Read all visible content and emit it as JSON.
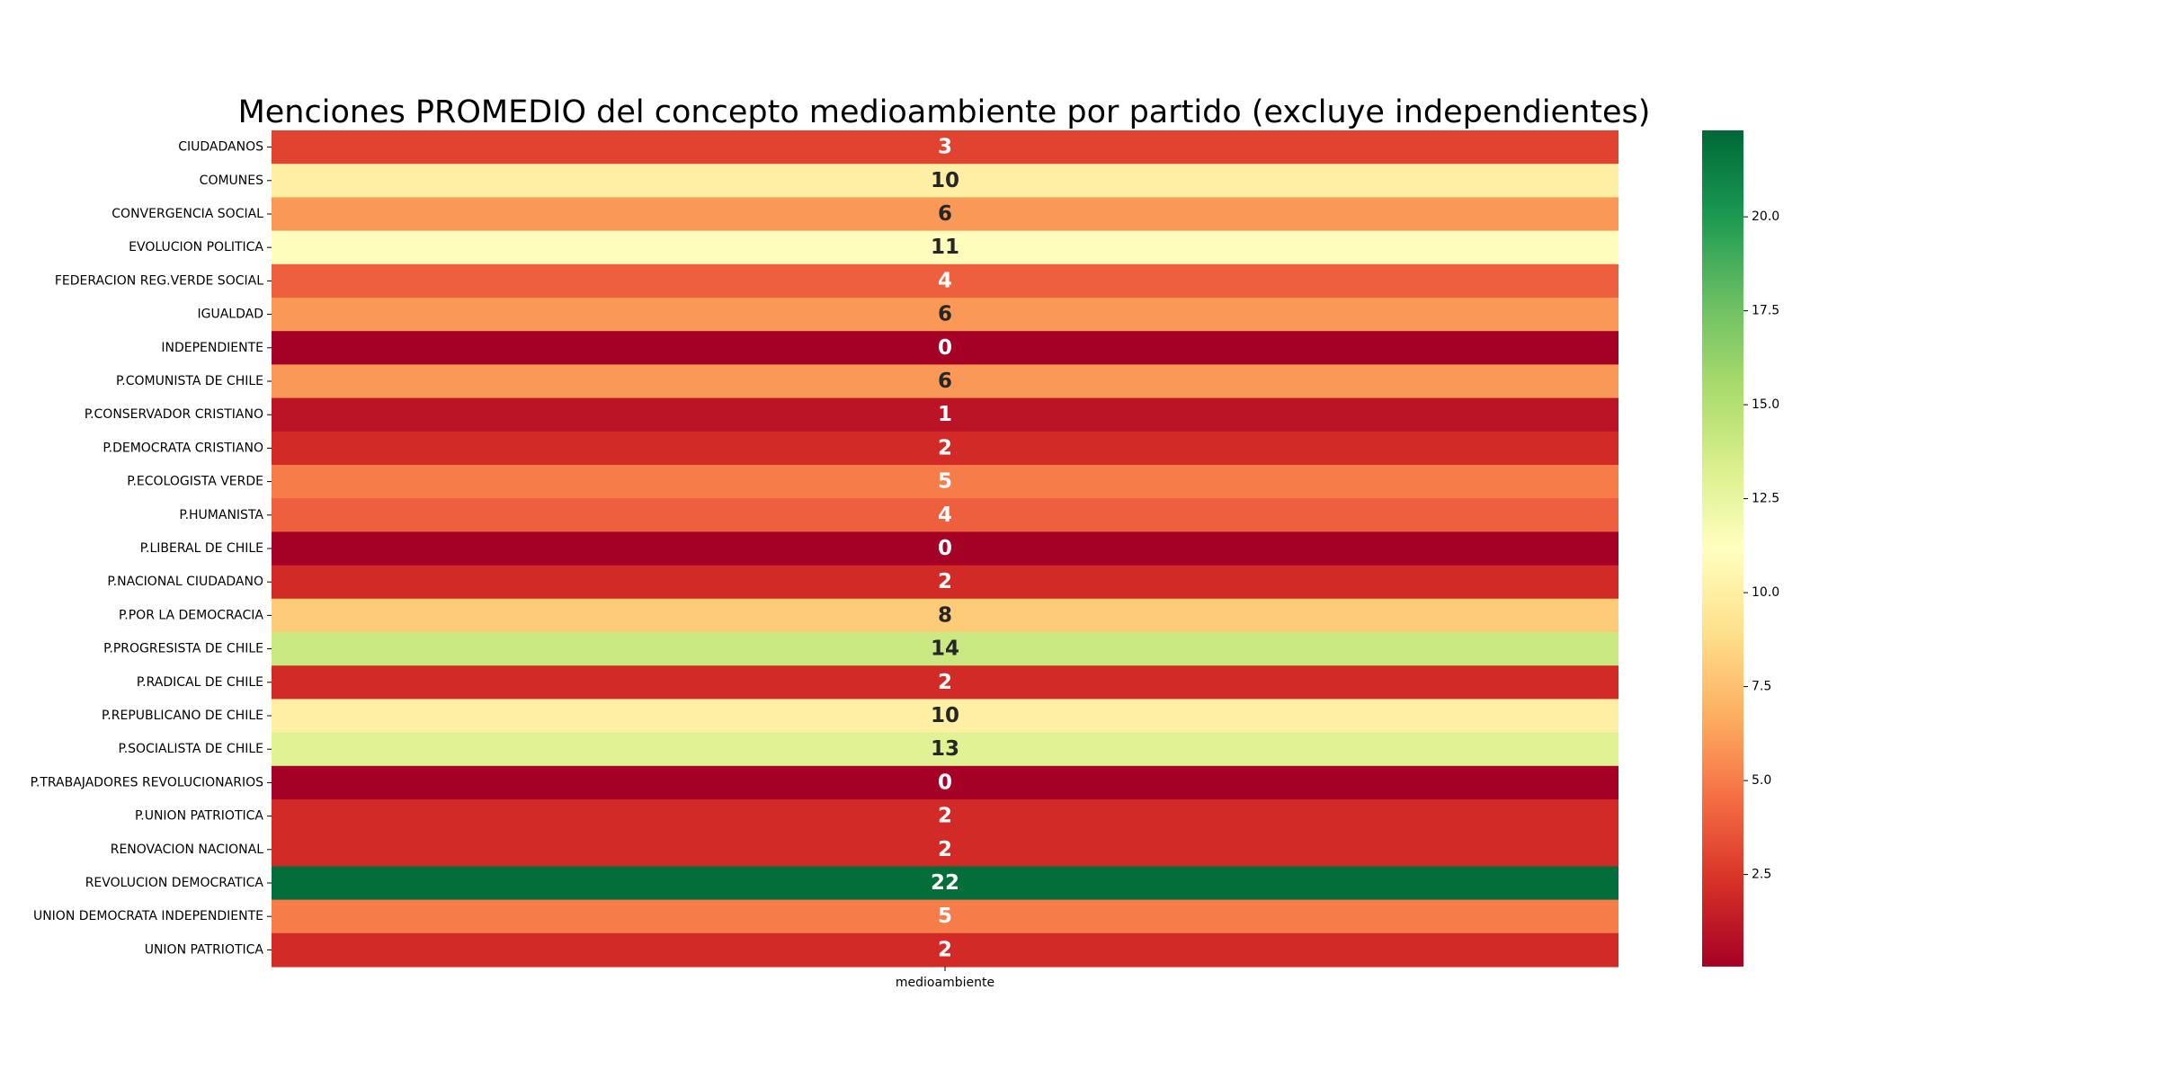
{
  "chart_data": {
    "type": "heatmap",
    "title": "Menciones PROMEDIO del concepto medioambiente por partido (excluye independientes)",
    "columns": [
      "medioambiente"
    ],
    "rows": [
      {
        "label": "CIUDADANOS",
        "value": 3
      },
      {
        "label": "COMUNES",
        "value": 10
      },
      {
        "label": "CONVERGENCIA SOCIAL",
        "value": 6
      },
      {
        "label": "EVOLUCION POLITICA",
        "value": 11
      },
      {
        "label": "FEDERACION REG.VERDE SOCIAL",
        "value": 4
      },
      {
        "label": "IGUALDAD",
        "value": 6
      },
      {
        "label": "INDEPENDIENTE",
        "value": 0
      },
      {
        "label": "P.COMUNISTA DE CHILE",
        "value": 6
      },
      {
        "label": "P.CONSERVADOR CRISTIANO",
        "value": 1
      },
      {
        "label": "P.DEMOCRATA CRISTIANO",
        "value": 2
      },
      {
        "label": "P.ECOLOGISTA VERDE",
        "value": 5
      },
      {
        "label": "P.HUMANISTA",
        "value": 4
      },
      {
        "label": "P.LIBERAL DE CHILE",
        "value": 0
      },
      {
        "label": "P.NACIONAL CIUDADANO",
        "value": 2
      },
      {
        "label": "P.POR LA DEMOCRACIA",
        "value": 8
      },
      {
        "label": "P.PROGRESISTA DE CHILE",
        "value": 14
      },
      {
        "label": "P.RADICAL DE CHILE",
        "value": 2
      },
      {
        "label": "P.REPUBLICANO DE CHILE",
        "value": 10
      },
      {
        "label": "P.SOCIALISTA DE CHILE",
        "value": 13
      },
      {
        "label": "P.TRABAJADORES REVOLUCIONARIOS",
        "value": 0
      },
      {
        "label": "P.UNION PATRIOTICA",
        "value": 2
      },
      {
        "label": "RENOVACION NACIONAL",
        "value": 2
      },
      {
        "label": "REVOLUCION DEMOCRATICA",
        "value": 22
      },
      {
        "label": "UNION DEMOCRATA INDEPENDIENTE",
        "value": 5
      },
      {
        "label": "UNION PATRIOTICA",
        "value": 2
      }
    ],
    "colormap": "RdYlGn",
    "colorbar": {
      "range": [
        0.05,
        22.3
      ],
      "ticks": [
        2.5,
        5.0,
        7.5,
        10.0,
        12.5,
        15.0,
        17.5,
        20.0
      ],
      "tick_labels": [
        "2.5",
        "5.0",
        "7.5",
        "10.0",
        "12.5",
        "15.0",
        "17.5",
        "20.0"
      ]
    },
    "annotations": true
  }
}
